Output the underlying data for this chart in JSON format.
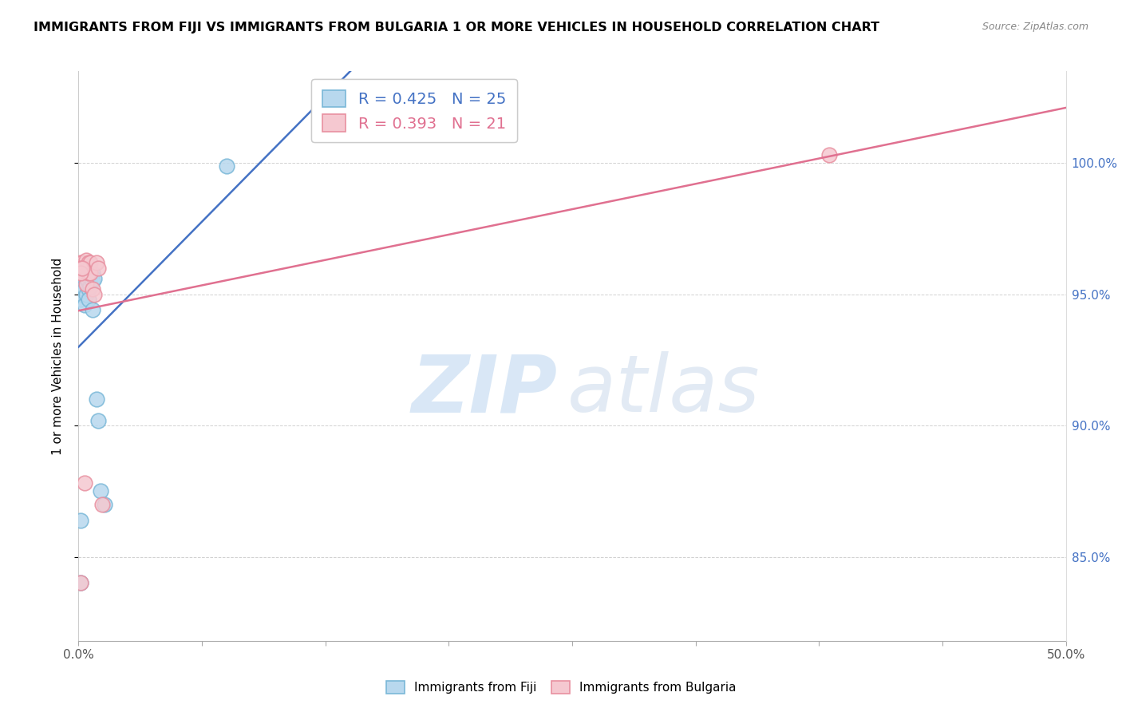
{
  "title": "IMMIGRANTS FROM FIJI VS IMMIGRANTS FROM BULGARIA 1 OR MORE VEHICLES IN HOUSEHOLD CORRELATION CHART",
  "source": "Source: ZipAtlas.com",
  "ylabel": "1 or more Vehicles in Household",
  "fiji_R": 0.425,
  "fiji_N": 25,
  "bulgaria_R": 0.393,
  "bulgaria_N": 21,
  "fiji_color_edge": "#7ab8d8",
  "fiji_color_fill": "#b8d8ee",
  "bulgaria_color_edge": "#e890a0",
  "bulgaria_color_fill": "#f5c8d0",
  "fiji_line_color": "#4472c4",
  "bulgaria_line_color": "#e07090",
  "xmin": 0.0,
  "xmax": 0.5,
  "ymin": 0.818,
  "ymax": 1.035,
  "yticks": [
    0.85,
    0.9,
    0.95,
    1.0
  ],
  "fiji_x": [
    0.001,
    0.001,
    0.002,
    0.002,
    0.003,
    0.003,
    0.003,
    0.004,
    0.004,
    0.005,
    0.005,
    0.005,
    0.006,
    0.006,
    0.007,
    0.007,
    0.007,
    0.008,
    0.009,
    0.01,
    0.011,
    0.013,
    0.001,
    0.075,
    0.001
  ],
  "fiji_y": [
    0.952,
    0.948,
    0.954,
    0.95,
    0.956,
    0.952,
    0.946,
    0.956,
    0.95,
    0.955,
    0.952,
    0.948,
    0.956,
    0.953,
    0.958,
    0.955,
    0.944,
    0.956,
    0.91,
    0.902,
    0.875,
    0.87,
    0.864,
    0.999,
    0.84
  ],
  "bulgaria_x": [
    0.001,
    0.002,
    0.002,
    0.003,
    0.004,
    0.004,
    0.005,
    0.005,
    0.006,
    0.006,
    0.007,
    0.008,
    0.009,
    0.01,
    0.012,
    0.001,
    0.001,
    0.001,
    0.002,
    0.003,
    0.38
  ],
  "bulgaria_y": [
    0.962,
    0.962,
    0.958,
    0.96,
    0.963,
    0.954,
    0.962,
    0.958,
    0.962,
    0.958,
    0.952,
    0.95,
    0.962,
    0.96,
    0.87,
    0.84,
    0.96,
    0.958,
    0.96,
    0.878,
    1.003
  ]
}
